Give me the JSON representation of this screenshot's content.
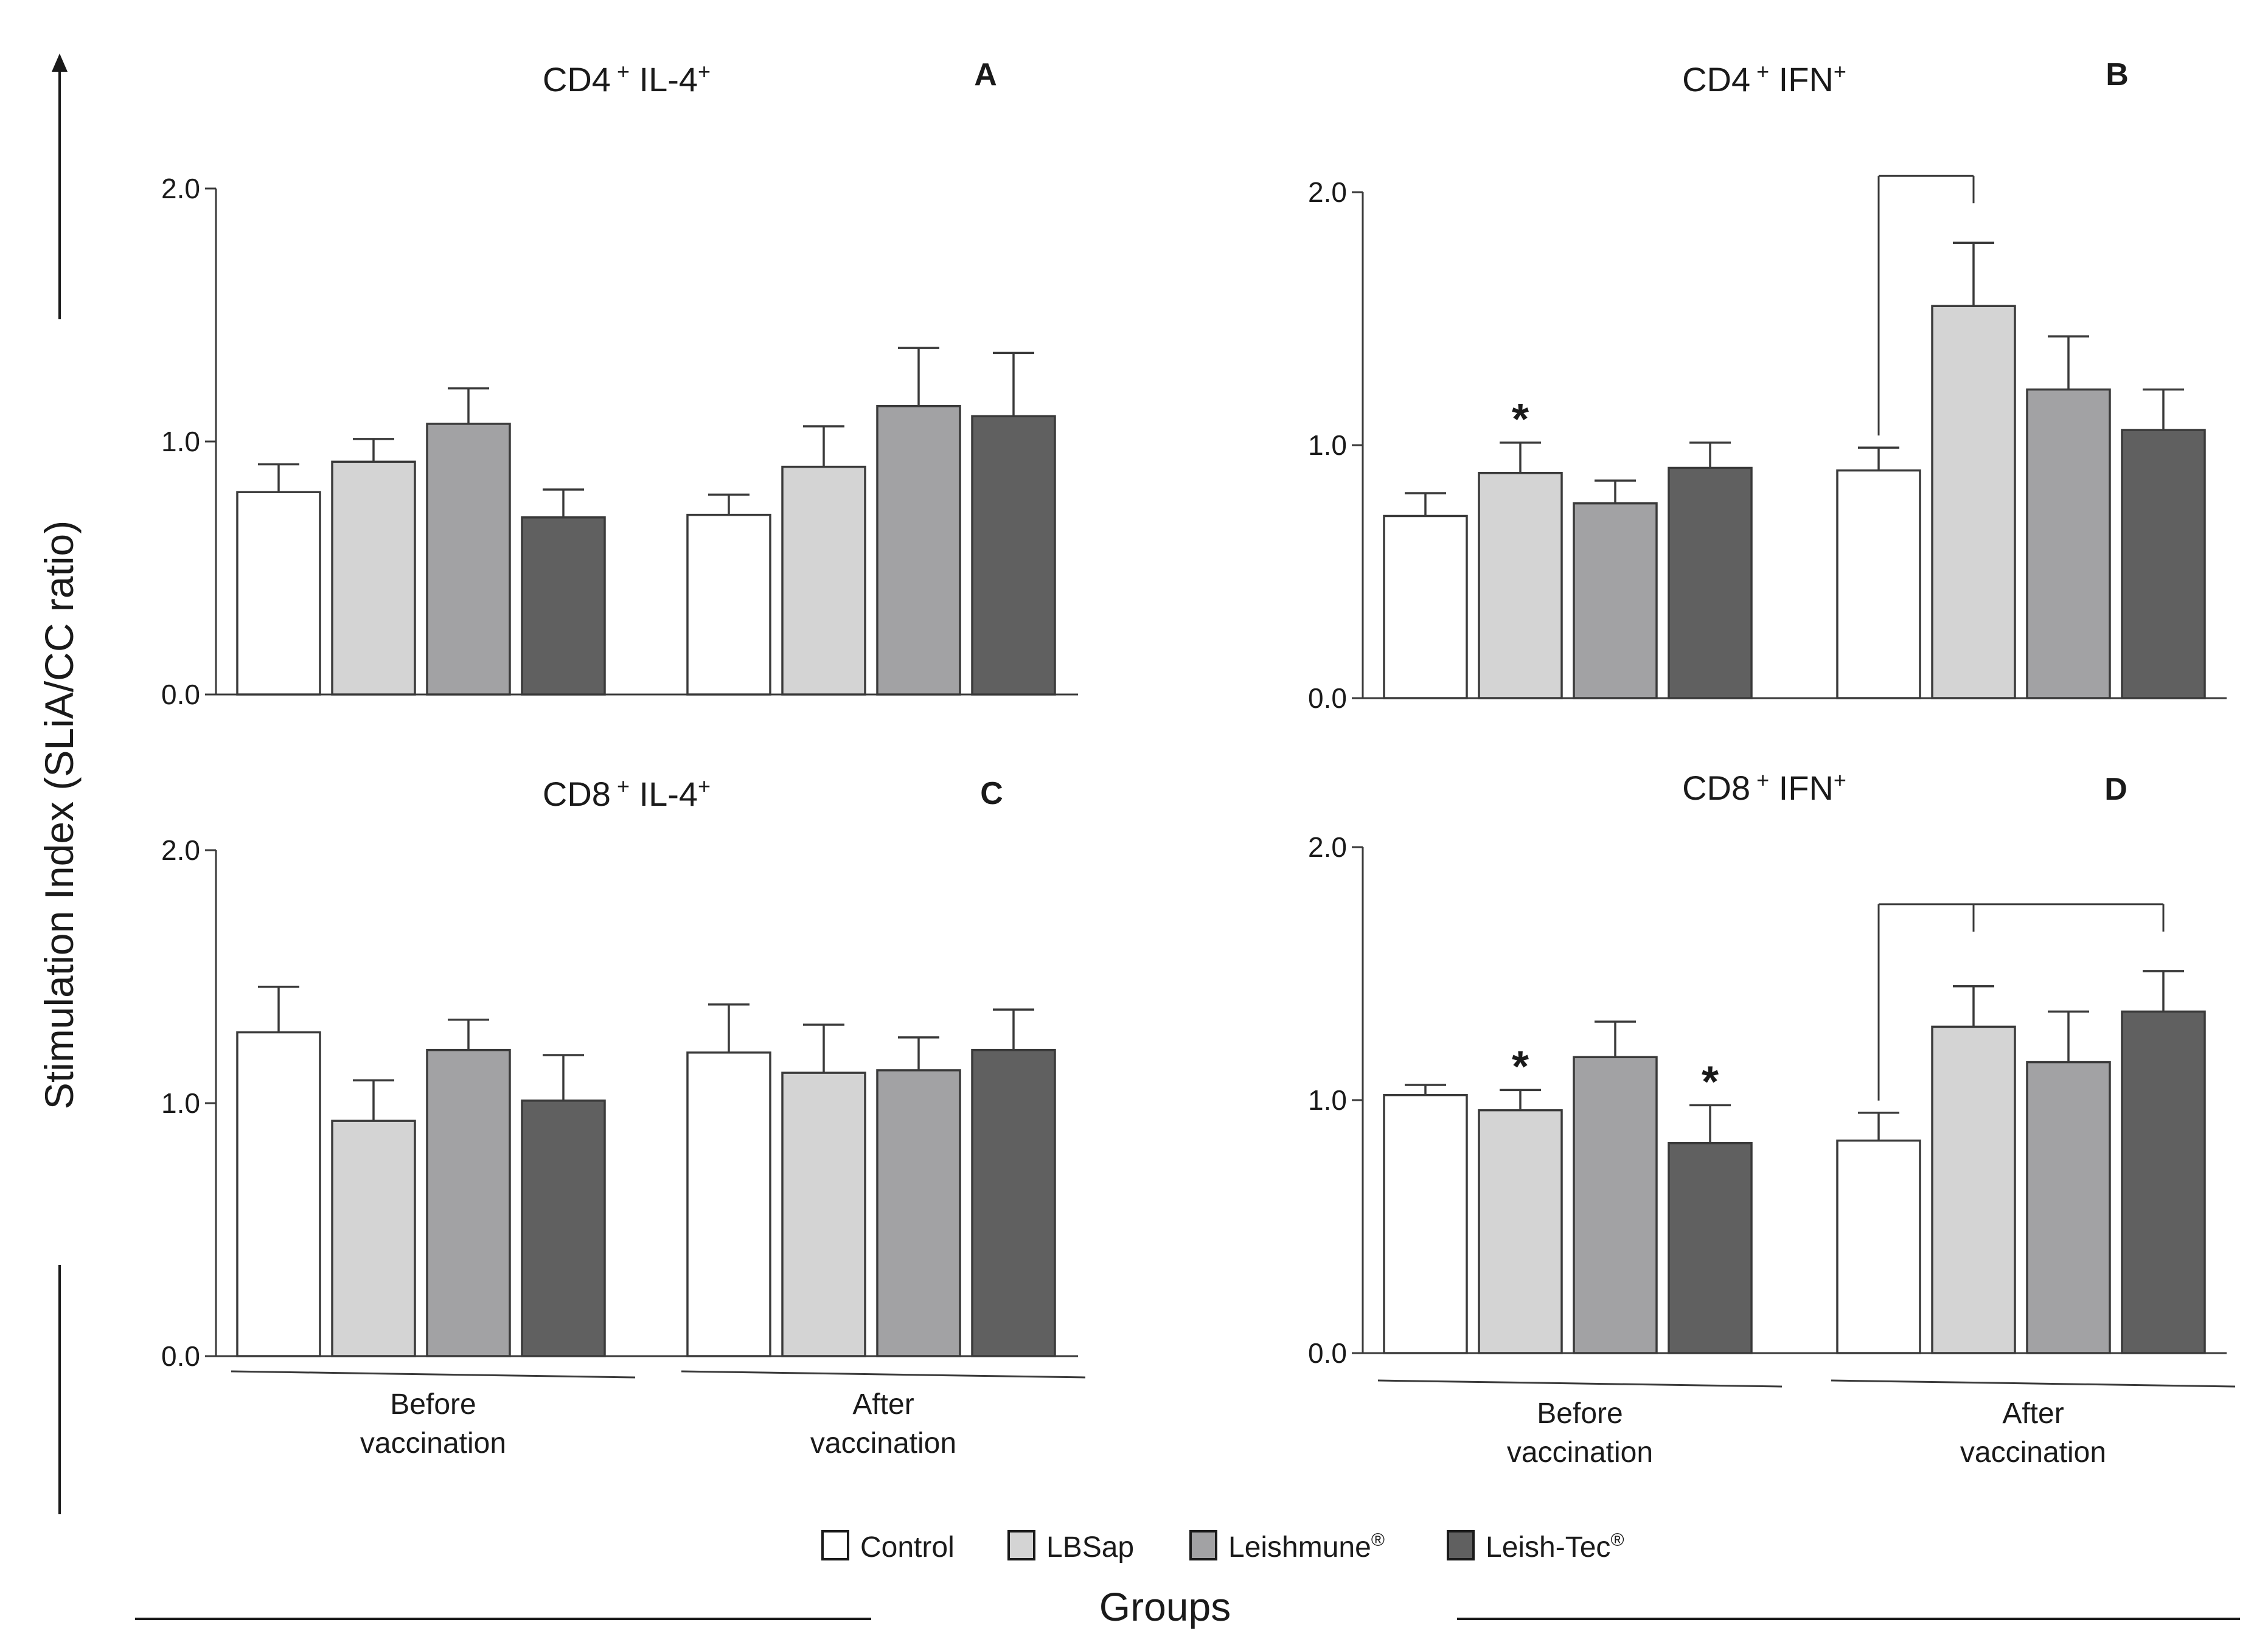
{
  "figure": {
    "ylabel": "Stimulation Index (SLiA/CC ratio)",
    "xlabel": "Groups",
    "legend": [
      {
        "label": "Control",
        "sup": "",
        "color": "#ffffff"
      },
      {
        "label": "LBSap",
        "sup": "",
        "color": "#d4d4d4"
      },
      {
        "label": "Leishmune",
        "sup": "®",
        "color": "#a2a2a4"
      },
      {
        "label": "Leish-Tec",
        "sup": "®",
        "color": "#606060"
      }
    ]
  },
  "chart_data": [
    {
      "type": "bar",
      "panel": "A",
      "title": "CD4",
      "title_sup1": "+",
      "title_marker": "IL-4",
      "title_sup2": "+",
      "categories": [
        "Before\nvaccination",
        "After\nvaccination"
      ],
      "series": [
        {
          "name": "Control",
          "values": [
            0.8,
            0.71
          ],
          "errors": [
            0.11,
            0.08
          ]
        },
        {
          "name": "LBSap",
          "values": [
            0.92,
            0.9
          ],
          "errors": [
            0.09,
            0.16
          ]
        },
        {
          "name": "Leishmune®",
          "values": [
            1.07,
            1.14
          ],
          "errors": [
            0.14,
            0.23
          ]
        },
        {
          "name": "Leish-Tec®",
          "values": [
            0.7,
            1.1
          ],
          "errors": [
            0.11,
            0.25
          ]
        }
      ],
      "ylim": [
        0,
        2.0
      ],
      "yticks": [
        "0.0",
        "1.0",
        "2.0"
      ],
      "stars": [],
      "brackets": []
    },
    {
      "type": "bar",
      "panel": "B",
      "title": "CD4",
      "title_sup1": "+",
      "title_marker": "IFN",
      "title_sup2": "+",
      "categories": [
        "Before\nvaccination",
        "After\nvaccination"
      ],
      "series": [
        {
          "name": "Control",
          "values": [
            0.72,
            0.9
          ],
          "errors": [
            0.09,
            0.09
          ]
        },
        {
          "name": "LBSap",
          "values": [
            0.89,
            1.55
          ],
          "errors": [
            0.12,
            0.25
          ]
        },
        {
          "name": "Leishmune®",
          "values": [
            0.77,
            1.22
          ],
          "errors": [
            0.09,
            0.21
          ]
        },
        {
          "name": "Leish-Tec®",
          "values": [
            0.91,
            1.06
          ],
          "errors": [
            0.1,
            0.16
          ]
        }
      ],
      "ylim": [
        0,
        2.0
      ],
      "yticks": [
        "0.0",
        "1.0",
        "2.0"
      ],
      "stars": [
        {
          "group": 0,
          "series": 1,
          "symbol": "*"
        }
      ],
      "brackets": [
        {
          "group": 1,
          "from": 0,
          "to": [
            1
          ]
        }
      ]
    },
    {
      "type": "bar",
      "panel": "C",
      "title": "CD8",
      "title_sup1": "+",
      "title_marker": "IL-4",
      "title_sup2": "+",
      "categories": [
        "Before\nvaccination",
        "After\nvaccination"
      ],
      "series": [
        {
          "name": "Control",
          "values": [
            1.28,
            1.2
          ],
          "errors": [
            0.18,
            0.19
          ]
        },
        {
          "name": "LBSap",
          "values": [
            0.93,
            1.12
          ],
          "errors": [
            0.16,
            0.19
          ]
        },
        {
          "name": "Leishmune®",
          "values": [
            1.21,
            1.13
          ],
          "errors": [
            0.12,
            0.13
          ]
        },
        {
          "name": "Leish-Tec®",
          "values": [
            1.01,
            1.21
          ],
          "errors": [
            0.18,
            0.16
          ]
        }
      ],
      "ylim": [
        0,
        2.0
      ],
      "yticks": [
        "0.0",
        "1.0",
        "2.0"
      ],
      "stars": [],
      "brackets": []
    },
    {
      "type": "bar",
      "panel": "D",
      "title": "CD8",
      "title_sup1": "+",
      "title_marker": "IFN",
      "title_sup2": "+",
      "categories": [
        "Before\nvaccination",
        "After\nvaccination"
      ],
      "series": [
        {
          "name": "Control",
          "values": [
            1.02,
            0.84
          ],
          "errors": [
            0.04,
            0.11
          ]
        },
        {
          "name": "LBSap",
          "values": [
            0.96,
            1.29
          ],
          "errors": [
            0.08,
            0.16
          ]
        },
        {
          "name": "Leishmune®",
          "values": [
            1.17,
            1.15
          ],
          "errors": [
            0.14,
            0.2
          ]
        },
        {
          "name": "Leish-Tec®",
          "values": [
            0.83,
            1.35
          ],
          "errors": [
            0.15,
            0.16
          ]
        }
      ],
      "ylim": [
        0,
        2.0
      ],
      "yticks": [
        "0.0",
        "1.0",
        "2.0"
      ],
      "stars": [
        {
          "group": 0,
          "series": 1,
          "symbol": "*"
        },
        {
          "group": 0,
          "series": 3,
          "symbol": "*"
        }
      ],
      "brackets": [
        {
          "group": 1,
          "from": 0,
          "to": [
            1,
            3
          ]
        }
      ]
    }
  ]
}
